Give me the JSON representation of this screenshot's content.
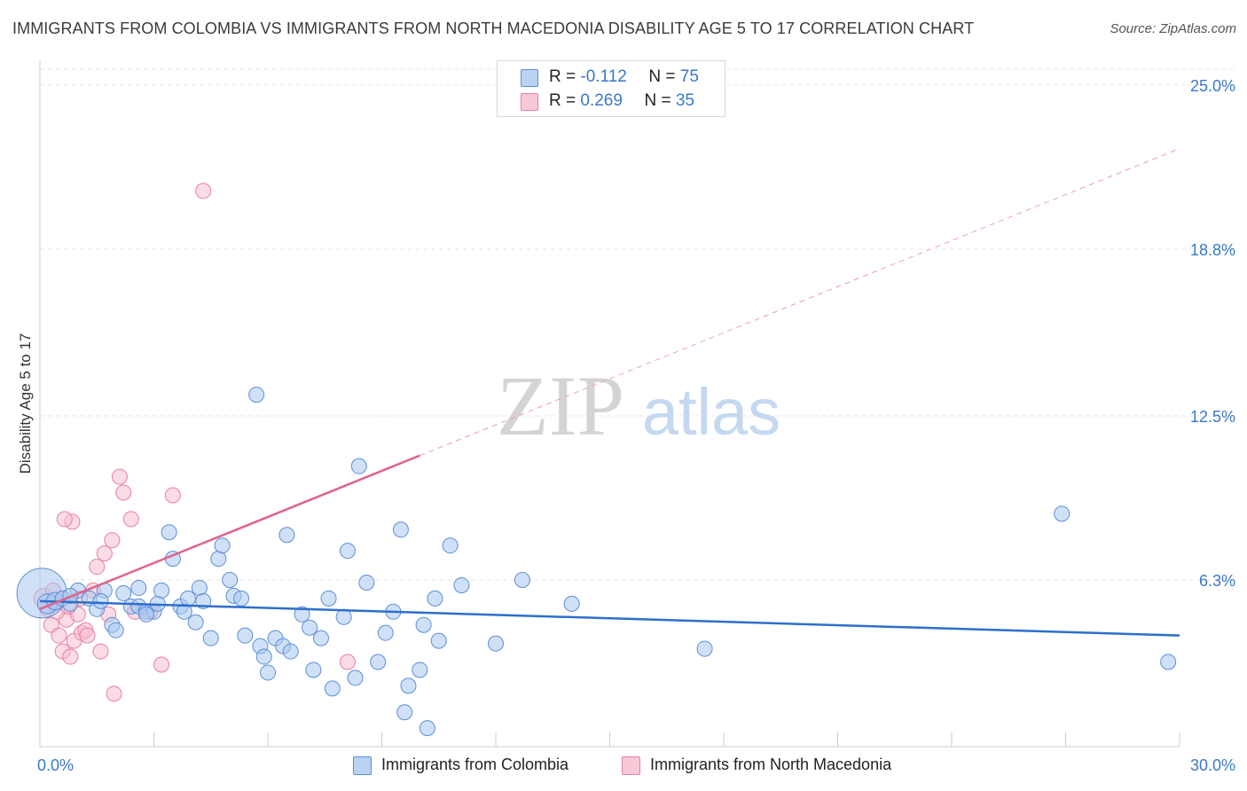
{
  "title": "IMMIGRANTS FROM COLOMBIA VS IMMIGRANTS FROM NORTH MACEDONIA DISABILITY AGE 5 TO 17 CORRELATION CHART",
  "source": "Source: ZipAtlas.com",
  "watermark": {
    "zip": "ZIP",
    "atlas": "atlas"
  },
  "legend": {
    "rows": [
      {
        "r_label": "R = ",
        "r_value": "-0.112",
        "n_label": "N = ",
        "n_value": "75"
      },
      {
        "r_label": "R = ",
        "r_value": "0.269",
        "n_label": "N = ",
        "n_value": "35"
      }
    ]
  },
  "bottom_legend": [
    {
      "label": "Immigrants from Colombia"
    },
    {
      "label": "Immigrants from North Macedonia"
    }
  ],
  "colors": {
    "blue_fill": "#a9c8f0",
    "blue_stroke": "#5b8fd6",
    "blue_line": "#2d6fcc",
    "pink_fill": "#f8bfd0",
    "pink_stroke": "#e87fa0",
    "pink_line": "#e0628e",
    "axis_text": "#3a78c9",
    "grid": "#e6e6e6"
  },
  "chart_data": {
    "type": "scatter",
    "title": "IMMIGRANTS FROM COLOMBIA VS IMMIGRANTS FROM NORTH MACEDONIA DISABILITY AGE 5 TO 17 CORRELATION CHART",
    "xlabel": "",
    "ylabel": "Disability Age 5 to 17",
    "xlim": [
      0,
      30
    ],
    "ylim": [
      0,
      25.6
    ],
    "x_tick_labels": [
      "0.0%",
      "30.0%"
    ],
    "y_ticks": [
      6.3,
      12.5,
      18.8,
      25.0
    ],
    "y_tick_labels": [
      "6.3%",
      "12.5%",
      "18.8%",
      "25.0%"
    ],
    "series": [
      {
        "name": "Immigrants from Colombia",
        "r": -0.112,
        "n": 75,
        "trend": {
          "x0": 0,
          "y0": 5.5,
          "x1": 30,
          "y1": 4.2
        },
        "points": [
          [
            0.05,
            5.8,
            40
          ],
          [
            0.2,
            5.4,
            16
          ],
          [
            0.4,
            5.5,
            14
          ],
          [
            0.6,
            5.6,
            10
          ],
          [
            0.8,
            5.4,
            10
          ],
          [
            1.0,
            5.9,
            10
          ],
          [
            1.3,
            5.6,
            10
          ],
          [
            1.5,
            5.2,
            10
          ],
          [
            1.7,
            5.9,
            10
          ],
          [
            1.9,
            4.6,
            10
          ],
          [
            2.0,
            4.4,
            10
          ],
          [
            2.2,
            5.8,
            10
          ],
          [
            2.4,
            5.3,
            10
          ],
          [
            2.6,
            5.3,
            10
          ],
          [
            2.6,
            6.0,
            10
          ],
          [
            2.8,
            5.1,
            10
          ],
          [
            3.0,
            5.1,
            10
          ],
          [
            3.1,
            5.4,
            10
          ],
          [
            3.2,
            5.9,
            10
          ],
          [
            3.4,
            8.1,
            10
          ],
          [
            3.5,
            7.1,
            10
          ],
          [
            3.7,
            5.3,
            10
          ],
          [
            3.8,
            5.1,
            10
          ],
          [
            3.9,
            5.6,
            10
          ],
          [
            4.1,
            4.7,
            10
          ],
          [
            4.2,
            6.0,
            10
          ],
          [
            4.3,
            5.5,
            10
          ],
          [
            4.5,
            4.1,
            10
          ],
          [
            4.7,
            7.1,
            10
          ],
          [
            4.8,
            7.6,
            10
          ],
          [
            5.0,
            6.3,
            10
          ],
          [
            5.1,
            5.7,
            10
          ],
          [
            5.3,
            5.6,
            10
          ],
          [
            5.7,
            13.3,
            10
          ],
          [
            5.4,
            4.2,
            10
          ],
          [
            5.8,
            3.8,
            10
          ],
          [
            5.9,
            3.4,
            10
          ],
          [
            6.0,
            2.8,
            10
          ],
          [
            6.2,
            4.1,
            10
          ],
          [
            6.4,
            3.8,
            10
          ],
          [
            6.5,
            8.0,
            10
          ],
          [
            6.6,
            3.6,
            10
          ],
          [
            6.9,
            5.0,
            10
          ],
          [
            7.1,
            4.5,
            10
          ],
          [
            7.2,
            2.9,
            10
          ],
          [
            7.4,
            4.1,
            10
          ],
          [
            7.6,
            5.6,
            10
          ],
          [
            7.7,
            2.2,
            10
          ],
          [
            8.0,
            4.9,
            10
          ],
          [
            8.1,
            7.4,
            10
          ],
          [
            8.3,
            2.6,
            10
          ],
          [
            8.4,
            10.6,
            10
          ],
          [
            8.6,
            6.2,
            10
          ],
          [
            8.9,
            3.2,
            10
          ],
          [
            9.1,
            4.3,
            10
          ],
          [
            9.3,
            5.1,
            10
          ],
          [
            9.5,
            8.2,
            10
          ],
          [
            9.6,
            1.3,
            10
          ],
          [
            9.7,
            2.3,
            10
          ],
          [
            10.0,
            2.9,
            10
          ],
          [
            10.1,
            4.6,
            10
          ],
          [
            10.2,
            0.7,
            10
          ],
          [
            10.4,
            5.6,
            10
          ],
          [
            10.5,
            4.0,
            10
          ],
          [
            10.8,
            7.6,
            10
          ],
          [
            11.1,
            6.1,
            10
          ],
          [
            12.0,
            3.9,
            10
          ],
          [
            12.7,
            6.3,
            10
          ],
          [
            14.0,
            5.4,
            10
          ],
          [
            17.5,
            3.7,
            10
          ],
          [
            26.9,
            8.8,
            10
          ],
          [
            29.7,
            3.2,
            10
          ],
          [
            0.8,
            5.7,
            10
          ],
          [
            1.6,
            5.5,
            10
          ],
          [
            2.8,
            5.0,
            10
          ]
        ]
      },
      {
        "name": "Immigrants from North Macedonia",
        "r": 0.269,
        "n": 35,
        "trend": {
          "x0": 0,
          "y0": 5.2,
          "x1": 30,
          "y1": 22.6,
          "solid_until_x": 10.0
        },
        "points": [
          [
            0.1,
            5.6,
            16
          ],
          [
            0.2,
            5.2,
            10
          ],
          [
            0.3,
            4.6,
            10
          ],
          [
            0.4,
            5.4,
            10
          ],
          [
            0.5,
            4.2,
            10
          ],
          [
            0.6,
            3.6,
            10
          ],
          [
            0.7,
            4.8,
            10
          ],
          [
            0.8,
            3.4,
            10
          ],
          [
            0.9,
            4.0,
            10
          ],
          [
            1.0,
            5.0,
            10
          ],
          [
            1.1,
            4.3,
            10
          ],
          [
            1.2,
            4.4,
            10
          ],
          [
            1.4,
            5.9,
            10
          ],
          [
            1.5,
            6.8,
            10
          ],
          [
            1.6,
            3.6,
            10
          ],
          [
            1.7,
            7.3,
            10
          ],
          [
            1.8,
            5.0,
            10
          ],
          [
            1.9,
            7.8,
            10
          ],
          [
            2.1,
            10.2,
            10
          ],
          [
            2.2,
            9.6,
            10
          ],
          [
            2.4,
            8.6,
            10
          ],
          [
            2.5,
            5.1,
            10
          ],
          [
            2.9,
            5.1,
            10
          ],
          [
            3.2,
            3.1,
            10
          ],
          [
            3.5,
            9.5,
            10
          ],
          [
            4.3,
            21.0,
            10
          ],
          [
            8.1,
            3.2,
            10
          ],
          [
            1.95,
            2.0,
            10
          ],
          [
            0.85,
            8.5,
            10
          ],
          [
            0.65,
            8.6,
            10
          ],
          [
            1.25,
            4.2,
            10
          ],
          [
            0.35,
            5.9,
            10
          ],
          [
            0.45,
            5.1,
            10
          ],
          [
            1.05,
            5.6,
            10
          ],
          [
            0.75,
            5.3,
            10
          ]
        ]
      }
    ]
  }
}
